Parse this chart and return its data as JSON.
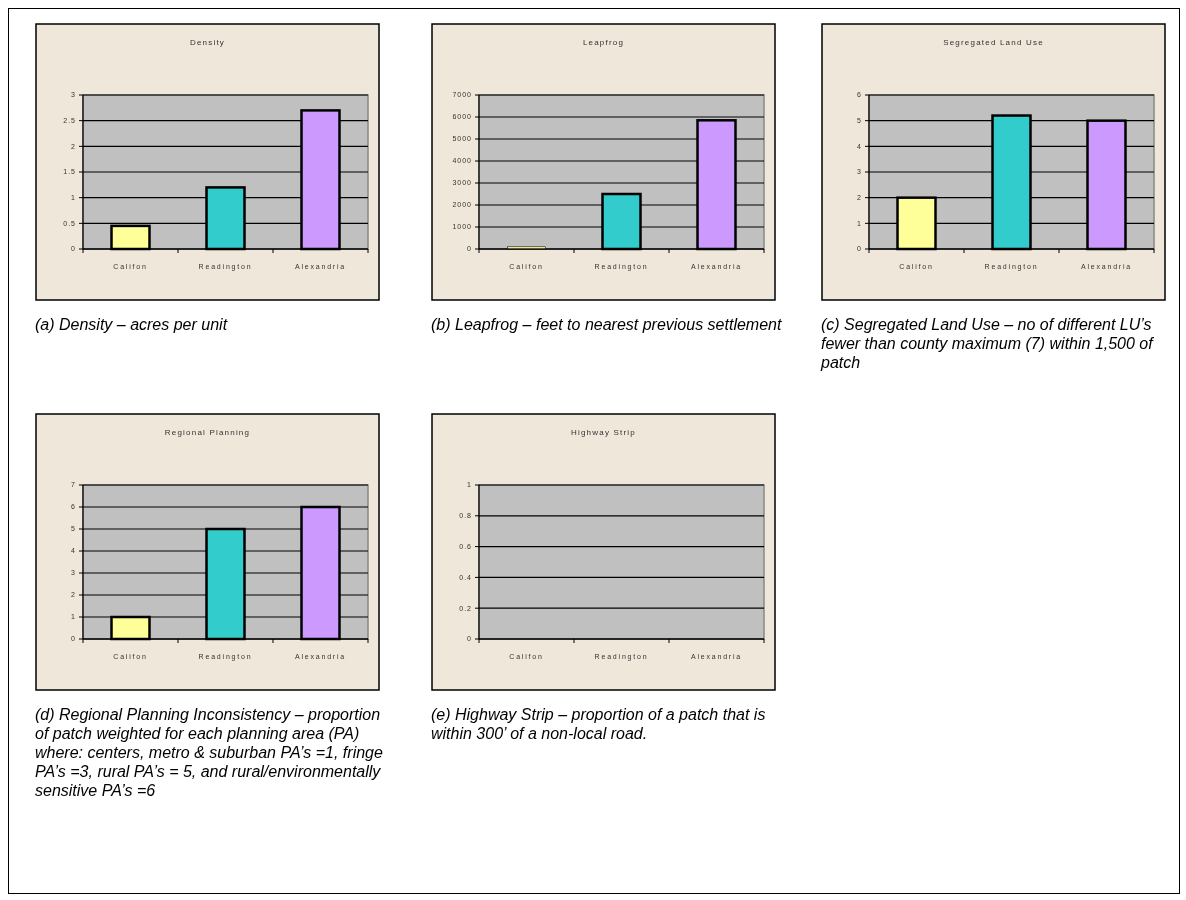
{
  "chart_data": [
    {
      "type": "bar",
      "title": "Density",
      "categories": [
        "Califon",
        "Readington",
        "Alexandria"
      ],
      "values": [
        0.45,
        1.2,
        2.7
      ],
      "colors": [
        "#ffff99",
        "#33cccc",
        "#cc99ff"
      ],
      "ylim": [
        0,
        3
      ],
      "yticks": [
        0,
        0.5,
        1,
        1.5,
        2,
        2.5,
        3
      ],
      "grid": "y",
      "annotations": [
        "(a) Density – acres per unit"
      ]
    },
    {
      "type": "bar",
      "title": "Leapfrog",
      "categories": [
        "Califon",
        "Readington",
        "Alexandria"
      ],
      "values": [
        100,
        2500,
        5850
      ],
      "colors": [
        "#ffff99",
        "#33cccc",
        "#cc99ff"
      ],
      "ylim": [
        0,
        7000
      ],
      "yticks": [
        0,
        1000,
        2000,
        3000,
        4000,
        5000,
        6000,
        7000
      ],
      "grid": "y",
      "annotations": [
        "(b) Leapfrog – feet to nearest previous settlement"
      ]
    },
    {
      "type": "bar",
      "title": "Segregated Land Use",
      "categories": [
        "Califon",
        "Readington",
        "Alexandria"
      ],
      "values": [
        2,
        5.2,
        5
      ],
      "colors": [
        "#ffff99",
        "#33cccc",
        "#cc99ff"
      ],
      "ylim": [
        0,
        6
      ],
      "yticks": [
        0,
        1,
        2,
        3,
        4,
        5,
        6
      ],
      "grid": "y",
      "annotations": [
        "(c) Segregated Land Use – no of different LU’s fewer than county maximum (7) within 1,500 of patch"
      ]
    },
    {
      "type": "bar",
      "title": "Regional Planning",
      "categories": [
        "Califon",
        "Readington",
        "Alexandria"
      ],
      "values": [
        1,
        5,
        6
      ],
      "colors": [
        "#ffff99",
        "#33cccc",
        "#cc99ff"
      ],
      "ylim": [
        0,
        7
      ],
      "yticks": [
        0,
        1,
        2,
        3,
        4,
        5,
        6,
        7
      ],
      "grid": "y",
      "annotations": [
        "(d) Regional Planning Inconsistency – proportion of patch weighted for each planning area (PA) where: centers, metro & suburban PA’s =1, fringe PA’s =3, rural PA’s = 5, and rural/environmentally sensitive PA’s =6"
      ]
    },
    {
      "type": "bar",
      "title": "Highway Strip",
      "categories": [
        "Califon",
        "Readington",
        "Alexandria"
      ],
      "values": [
        0,
        0,
        0
      ],
      "colors": [
        "#ffff99",
        "#33cccc",
        "#cc99ff"
      ],
      "ylim": [
        0,
        1
      ],
      "yticks": [
        0,
        0.2,
        0.4,
        0.6,
        0.8,
        1
      ],
      "grid": "y",
      "annotations": [
        "(e) Highway Strip – proportion of a patch that is within 300’ of a non-local road."
      ]
    }
  ]
}
